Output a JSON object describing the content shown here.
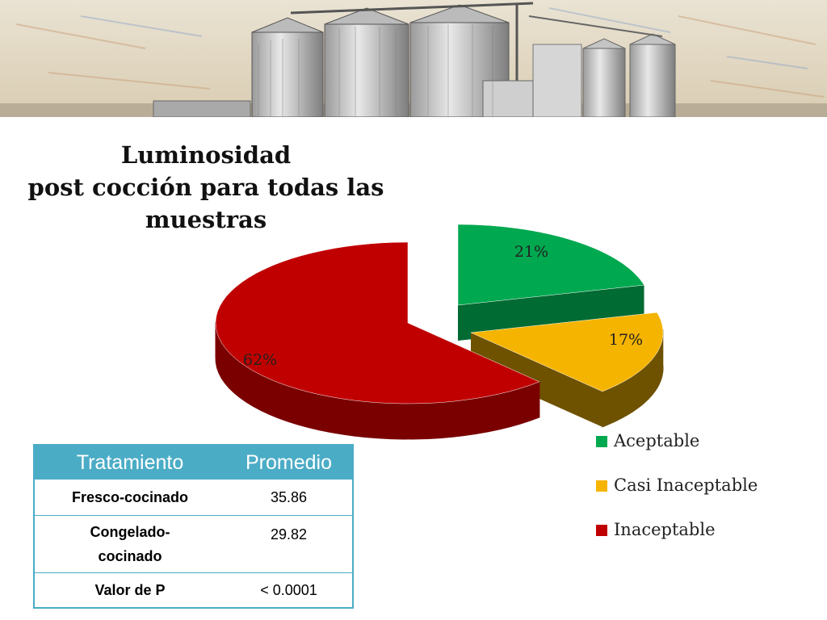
{
  "chart_data": {
    "type": "pie",
    "title": [
      "Luminosidad",
      "post cocción para todas las",
      "muestras"
    ],
    "slices": [
      {
        "label": "Aceptable",
        "value": 21,
        "display": "21%",
        "color": "#00a84f",
        "side": "#006b32"
      },
      {
        "label": "Casi Inaceptable",
        "value": 17,
        "display": "17%",
        "color": "#f5b400",
        "side": "#6e5200"
      },
      {
        "label": "Inaceptable",
        "value": 62,
        "display": "62%",
        "color": "#c00000",
        "side": "#7a0000"
      }
    ],
    "legend_position": "bottom-right"
  },
  "table": {
    "headers": [
      "Tratamiento",
      "Promedio"
    ],
    "rows": [
      {
        "tratamiento": "Fresco-cocinado",
        "promedio": "35.86"
      },
      {
        "tratamiento_line1": "Congelado-",
        "tratamiento_line2": "cocinado",
        "promedio": "29.82"
      },
      {
        "tratamiento": "Valor de P",
        "promedio": "< 0.0001"
      }
    ]
  },
  "colors": {
    "table_header": "#4bacc6",
    "banner_sky": "#e9e0cf"
  }
}
